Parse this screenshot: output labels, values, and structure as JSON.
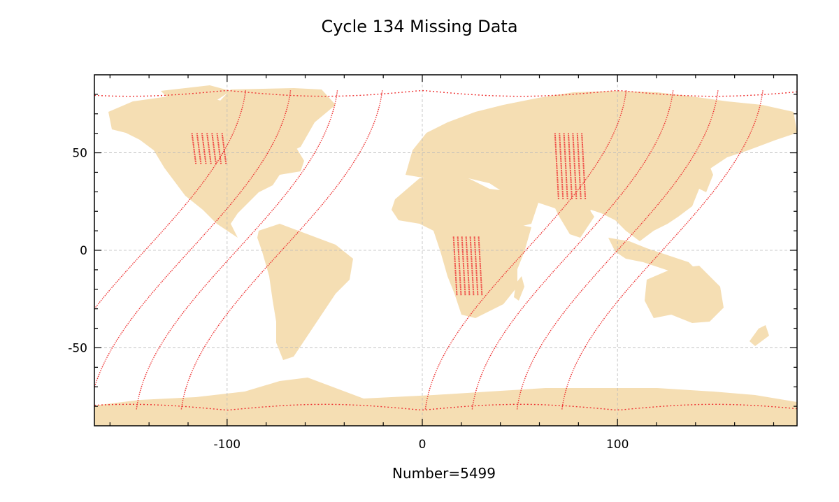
{
  "map": {
    "title": "Cycle 134 Missing Data",
    "caption": "Number=5499",
    "projection": "equirectangular",
    "land_color": "#f5deb3",
    "point_color": "#ee3333",
    "grid": true,
    "xlim": [
      -168,
      192
    ],
    "ylim": [
      -90,
      90
    ],
    "x_ticks": [
      {
        "value": -100,
        "label": "-100"
      },
      {
        "value": 0,
        "label": "0"
      },
      {
        "value": 100,
        "label": "100"
      }
    ],
    "y_ticks": [
      {
        "value": 50,
        "label": "50"
      },
      {
        "value": 0,
        "label": "0"
      },
      {
        "value": -50,
        "label": "-50"
      }
    ],
    "tracks": [
      {
        "lon0": -142
      },
      {
        "lon0": -119
      },
      {
        "lon0": -95
      },
      {
        "lon0": -72
      },
      {
        "lon0": 53
      },
      {
        "lon0": 77
      },
      {
        "lon0": 100
      },
      {
        "lon0": 123
      }
    ],
    "clusters": [
      {
        "region": "North America",
        "lon": [
          -118,
          -100
        ],
        "lat": [
          44,
          60
        ]
      },
      {
        "region": "Southern Africa",
        "lon": [
          16,
          31
        ],
        "lat": [
          -23,
          7
        ]
      },
      {
        "region": "Central Asia",
        "lon": [
          68,
          84
        ],
        "lat": [
          26,
          60
        ]
      }
    ]
  }
}
